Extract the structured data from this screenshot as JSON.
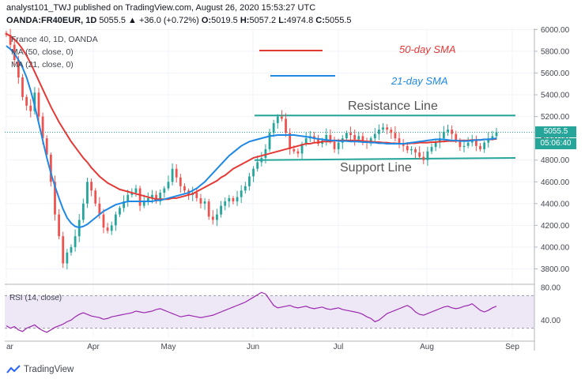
{
  "header": {
    "published": "analyst101_TWJ published on TradingView.com, August 26, 2020 15:53:27 UTC",
    "symbol": "OANDA:FR40EUR, 1D",
    "change": "5055.5 ▲ +36.0 (+0.72%)",
    "o_label": "O:",
    "o": "5019.5",
    "h_label": "H:",
    "h": "5057.2",
    "l_label": "L:",
    "l": "4974.8",
    "c_label": "C:",
    "c": "5055.5"
  },
  "legend": {
    "symbol": "France 40, 1D, OANDA",
    "ma50": "MA (50, close, 0)",
    "ma21": "MA (21, close, 0)"
  },
  "annotations": {
    "sma50": "50-day SMA",
    "sma21": "21-day SMA",
    "resistance": "Resistance Line",
    "support": "Support Line"
  },
  "price_scale": {
    "last_price": "5055.5",
    "countdown": "05:06:40"
  },
  "rsi": {
    "label": "RSI (14, close)"
  },
  "brand": "TradingView",
  "colors": {
    "up": "#26a69a",
    "down": "#ef5350",
    "ma50": "#e53935",
    "ma21": "#1e88e5",
    "levels": "#26a69a",
    "rsi": "#9c27b0",
    "rsi_band": "#ede7f6"
  },
  "chart_data": {
    "type": "candlestick",
    "x_ticks": [
      "ar",
      "Apr",
      "May",
      "Jun",
      "Jul",
      "Aug",
      "Sep"
    ],
    "y_ticks": [
      3800,
      4000,
      4200,
      4400,
      4600,
      4800,
      5000,
      5200,
      5400,
      5600,
      5800,
      6000
    ],
    "y_tick_labels": [
      "3800.00",
      "4000.00",
      "4200.00",
      "4400.00",
      "4600.00",
      "4800.00",
      "5000.00",
      "5200.00",
      "5400.00",
      "5600.00",
      "5800.00",
      "6000.00"
    ],
    "ylim": [
      3680,
      6010
    ],
    "close_path": [
      5950,
      5860,
      5720,
      5560,
      5380,
      5300,
      5250,
      5420,
      5200,
      5000,
      4850,
      4600,
      4300,
      4100,
      3850,
      3950,
      4000,
      4100,
      4250,
      4400,
      4600,
      4520,
      4400,
      4300,
      4180,
      4150,
      4200,
      4300,
      4360,
      4420,
      4480,
      4500,
      4540,
      4380,
      4420,
      4450,
      4480,
      4420,
      4500,
      4540,
      4600,
      4720,
      4640,
      4560,
      4520,
      4480,
      4500,
      4450,
      4400,
      4420,
      4280,
      4250,
      4300,
      4380,
      4420,
      4450,
      4420,
      4460,
      4520,
      4560,
      4650,
      4720,
      4780,
      4820,
      4900,
      5050,
      5140,
      5200,
      5180,
      5050,
      4900,
      4880,
      4860,
      4950,
      5000,
      5020,
      5000,
      4950,
      4980,
      5030,
      4970,
      4900,
      4960,
      5000,
      5050,
      5030,
      4990,
      5020,
      4980,
      4960,
      5000,
      5040,
      5080,
      5100,
      5080,
      5050,
      5000,
      4950,
      4930,
      4890,
      4900,
      4870,
      4830,
      4800,
      4880,
      4920,
      4960,
      5000,
      5060,
      5080,
      5040,
      4980,
      4920,
      4930,
      4960,
      4990,
      4930,
      4900,
      4960,
      5000,
      5019.5,
      5055.5
    ],
    "ma50": [
      5960,
      5940,
      5910,
      5870,
      5820,
      5760,
      5690,
      5610,
      5530,
      5450,
      5370,
      5290,
      5220,
      5150,
      5090,
      5030,
      4970,
      4920,
      4870,
      4820,
      4780,
      4730,
      4690,
      4650,
      4620,
      4590,
      4570,
      4550,
      4530,
      4520,
      4510,
      4500,
      4490,
      4480,
      4470,
      4460,
      4450,
      4440,
      4440,
      4440,
      4440,
      4450,
      4450,
      4460,
      4470,
      4480,
      4490,
      4510,
      4530,
      4550,
      4570,
      4590,
      4610,
      4640,
      4660,
      4690,
      4720,
      4740,
      4760,
      4780,
      4800,
      4820,
      4830,
      4840,
      4850,
      4860,
      4870,
      4880,
      4890,
      4900,
      4910,
      4920,
      4930,
      4940,
      4950,
      4950,
      4960,
      4960,
      4970,
      4970,
      4970,
      4980,
      4980,
      4980,
      4980,
      4980,
      4980,
      4980,
      4975,
      4970,
      4970,
      4965,
      4965,
      4960,
      4960,
      4955,
      4955,
      4950,
      4950,
      4950,
      4955,
      4955,
      4960,
      4960,
      4960,
      4965,
      4965,
      4970,
      4970,
      4975,
      4975,
      4975,
      4980,
      4980,
      4980,
      4985,
      4985,
      4985,
      4990,
      4990,
      4990,
      4995
    ],
    "ma21": [
      5850,
      5820,
      5780,
      5720,
      5650,
      5560,
      5440,
      5300,
      5140,
      4980,
      4820,
      4680,
      4560,
      4450,
      4350,
      4270,
      4220,
      4190,
      4180,
      4190,
      4210,
      4240,
      4270,
      4300,
      4330,
      4350,
      4370,
      4390,
      4400,
      4410,
      4420,
      4420,
      4420,
      4420,
      4420,
      4420,
      4420,
      4430,
      4430,
      4440,
      4450,
      4460,
      4470,
      4480,
      4490,
      4500,
      4520,
      4540,
      4570,
      4600,
      4640,
      4680,
      4720,
      4760,
      4800,
      4840,
      4870,
      4900,
      4930,
      4950,
      4970,
      4980,
      4990,
      5000,
      5010,
      5020,
      5025,
      5030,
      5030,
      5030,
      5030,
      5030,
      5025,
      5020,
      5015,
      5010,
      5000,
      4995,
      4990,
      4985,
      4980,
      4980,
      4975,
      4975,
      4975,
      4970,
      4970,
      4970,
      4965,
      4965,
      4960,
      4960,
      4955,
      4955,
      4950,
      4950,
      4950,
      4950,
      4950,
      4955,
      4960,
      4965,
      4970,
      4975,
      4980,
      4985,
      4990,
      4990,
      4990,
      4985,
      4980,
      4980,
      4975,
      4975,
      4975,
      4980,
      4985,
      4985,
      4990,
      4990,
      4995,
      5000
    ],
    "resistance": {
      "from": [
        322,
        5210
      ],
      "to": [
        652,
        5210
      ]
    },
    "support": {
      "from": [
        322,
        4800
      ],
      "to": [
        652,
        4820
      ]
    },
    "last_price": 5055.5,
    "rsi": {
      "label": "RSI (14, close)",
      "y_ticks": [
        40,
        80
      ],
      "y_tick_labels": [
        "40.00",
        "80.00"
      ],
      "ylim": [
        18,
        82
      ],
      "band": [
        30,
        70
      ],
      "values": [
        33,
        30,
        32,
        28,
        26,
        30,
        32,
        34,
        30,
        27,
        25,
        28,
        31,
        33,
        35,
        38,
        40,
        44,
        47,
        49,
        47,
        45,
        44,
        43,
        41,
        42,
        44,
        45,
        46,
        47,
        48,
        49,
        51,
        50,
        49,
        50,
        51,
        53,
        54,
        52,
        50,
        48,
        46,
        44,
        45,
        46,
        45,
        44,
        43,
        44,
        45,
        46,
        48,
        50,
        52,
        54,
        56,
        58,
        60,
        62,
        65,
        68,
        71,
        74,
        72,
        65,
        58,
        55,
        56,
        57,
        58,
        56,
        55,
        56,
        57,
        55,
        54,
        55,
        56,
        54,
        53,
        54,
        55,
        53,
        52,
        51,
        50,
        49,
        47,
        44,
        42,
        38,
        40,
        44,
        48,
        50,
        52,
        54,
        56,
        58,
        55,
        50,
        47,
        46,
        48,
        50,
        52,
        54,
        56,
        57,
        55,
        54,
        55,
        57,
        58,
        60,
        56,
        52,
        50,
        52,
        55,
        57
      ]
    }
  }
}
